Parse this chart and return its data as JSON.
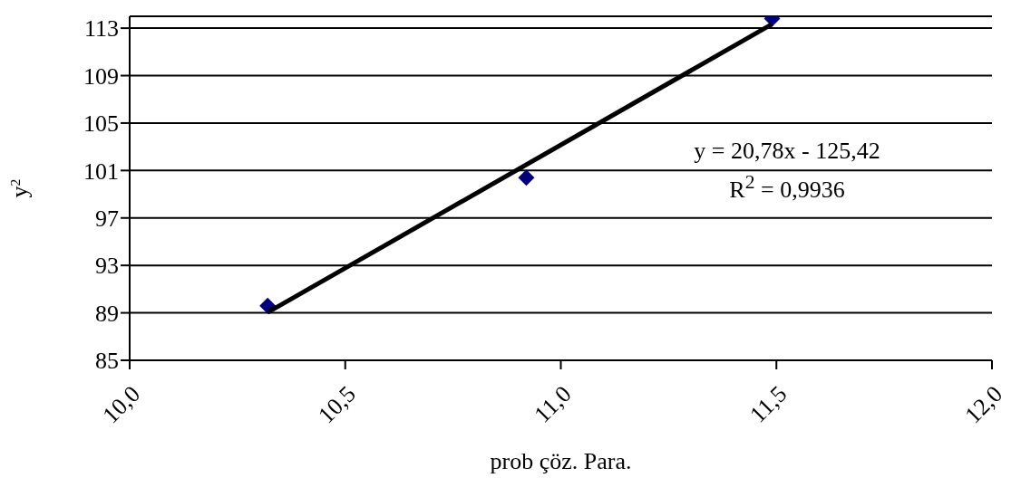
{
  "chart_data": {
    "type": "scatter",
    "xlabel": "prob çöz. Para.",
    "ylabel": "y$^{2}$",
    "x": [
      10.32,
      10.92,
      11.49
    ],
    "series": [
      {
        "color": "#000080",
        "values": [
          89.6,
          100.4,
          113.8
        ],
        "marker": "diamond"
      },
      {
        "type": "line",
        "color": "#000000",
        "x": [
          10.32,
          11.49
        ],
        "values": [
          89.03,
          113.34
        ],
        "marker": "none",
        "line_style": "solid"
      }
    ],
    "annotations": [
      "y = 20,78x - 125,42",
      "R$^{2}$ = 0,9936"
    ],
    "xlim": [
      10,
      12
    ],
    "xticks": [
      {
        "value": 10,
        "label": "10,0"
      },
      {
        "value": 10.5,
        "label": "10,5"
      },
      {
        "value": 11,
        "label": "11,0"
      },
      {
        "value": 11.5,
        "label": "11,5"
      },
      {
        "value": 12,
        "label": "12,0"
      }
    ],
    "ylim": [
      85,
      114
    ],
    "yticks": [
      85,
      89,
      93,
      97,
      101,
      105,
      109,
      113
    ],
    "grid": "y"
  }
}
